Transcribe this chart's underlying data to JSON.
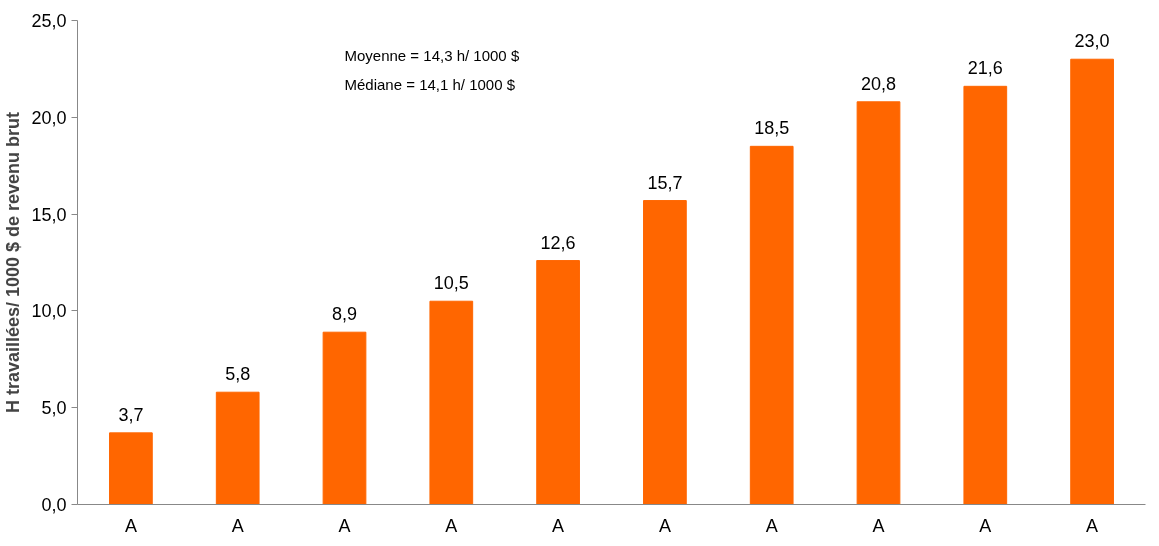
{
  "chart_data": {
    "type": "bar",
    "ylabel": "H travaillées/ 1000 $ de revenu brut",
    "categories": [
      "A",
      "A",
      "A",
      "A",
      "A",
      "A",
      "A",
      "A",
      "A",
      "A"
    ],
    "values": [
      3.7,
      5.8,
      8.9,
      10.5,
      12.6,
      15.7,
      18.5,
      20.8,
      21.6,
      23.0
    ],
    "value_labels": [
      "3,7",
      "5,8",
      "8,9",
      "10,5",
      "12,6",
      "15,7",
      "18,5",
      "20,8",
      "21,6",
      "23,0"
    ],
    "color": "#ff6600",
    "ylim": [
      0,
      25
    ],
    "yticks": [
      {
        "value": 0,
        "label": "0,0"
      },
      {
        "value": 5,
        "label": "5,0"
      },
      {
        "value": 10,
        "label": "10,0"
      },
      {
        "value": 15,
        "label": "15,0"
      },
      {
        "value": 20,
        "label": "20,0"
      },
      {
        "value": 25,
        "label": "25,0"
      }
    ],
    "annotations": [
      "Moyenne = 14,3 h/ 1000 $",
      "Médiane = 14,1 h/ 1000 $"
    ],
    "grid": false
  }
}
